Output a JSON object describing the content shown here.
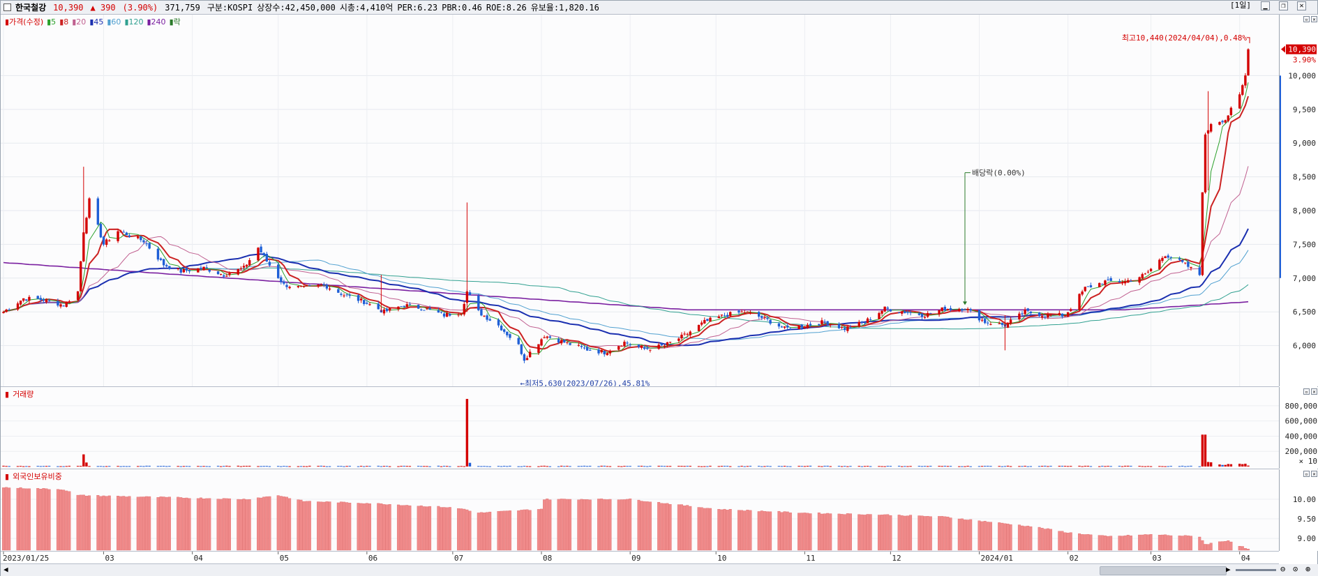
{
  "header": {
    "name": "한국철강",
    "price": "10,390",
    "change": "▲ 390",
    "change_pct": "(3.90%)",
    "volume": "371,759",
    "market": "구분:KOSPI",
    "shares": "상장수:42,450,000",
    "mktcap": "시총:4,410억",
    "per": "PER:6.23",
    "pbr": "PBR:0.46",
    "roe": "ROE:8.26",
    "reserve": "유보율:1,820.16",
    "period_label": "[1일]"
  },
  "colors": {
    "up": "#d40000",
    "down": "#1f5fd6",
    "ma5": "#2aa02a",
    "ma8": "#cc2222",
    "ma20": "#c06090",
    "ma45": "#1a2fb0",
    "ma60": "#50a0d0",
    "ma120": "#30a090",
    "ma240": "#7a1fa0",
    "ex_div": "#2a7a2a",
    "volume": "#d40000",
    "foreign": "#f08a8a"
  },
  "legend_price": [
    {
      "label": "가격(수정)",
      "color": "#d40000"
    },
    {
      "label": "5",
      "color": "#2aa02a"
    },
    {
      "label": "8",
      "color": "#cc2222"
    },
    {
      "label": "20",
      "color": "#c06090"
    },
    {
      "label": "45",
      "color": "#1a2fb0"
    },
    {
      "label": "60",
      "color": "#50a0d0"
    },
    {
      "label": "120",
      "color": "#30a090"
    },
    {
      "label": "240",
      "color": "#7a1fa0"
    },
    {
      "label": "락",
      "color": "#2a7a2a"
    }
  ],
  "legend_volume": "거래량",
  "legend_foreign": "외국인보유비중",
  "chart_data": [
    {
      "type": "candlestick",
      "title": "",
      "x": [
        "2023/01/25",
        "03",
        "04",
        "05",
        "06",
        "07",
        "08",
        "09",
        "10",
        "11",
        "12",
        "2024/01",
        "02",
        "03",
        "04"
      ],
      "ylim": [
        5500,
        10800
      ],
      "yticks": [
        "10,000",
        "9,500",
        "9,000",
        "8,500",
        "8,000",
        "7,500",
        "7,000",
        "6,500",
        "6,000"
      ],
      "last_price_label": "10,390",
      "last_pct_label": "3.90%",
      "annotations": [
        {
          "text": "최고10,440(2024/04/04),0.48%",
          "x": "2024/04/04",
          "y": 10440
        },
        {
          "text": "←최저5,630(2023/07/26),45.81%",
          "x": "2023/07/26",
          "y": 5630
        },
        {
          "text": "배당락(0.00%)",
          "x": "2023/12/27",
          "y": 6550
        }
      ],
      "close_path": [
        [
          "2023/01/25",
          6500
        ],
        [
          "2023/02/01",
          6700
        ],
        [
          "2023/02/08",
          6680
        ],
        [
          "2023/02/15",
          6600
        ],
        [
          "2023/02/20",
          6800
        ],
        [
          "2023/02/22",
          7700
        ],
        [
          "2023/02/24",
          8150
        ],
        [
          "2023/03/01",
          7500
        ],
        [
          "2023/03/06",
          7700
        ],
        [
          "2023/03/15",
          7550
        ],
        [
          "2023/03/22",
          7200
        ],
        [
          "2023/03/28",
          7100
        ],
        [
          "2023/04/05",
          7150
        ],
        [
          "2023/04/12",
          7050
        ],
        [
          "2023/04/19",
          7150
        ],
        [
          "2023/04/24",
          7450
        ],
        [
          "2023/04/27",
          7250
        ],
        [
          "2023/05/03",
          6900
        ],
        [
          "2023/05/10",
          6850
        ],
        [
          "2023/05/17",
          6900
        ],
        [
          "2023/05/24",
          6750
        ],
        [
          "2023/05/31",
          6650
        ],
        [
          "2023/06/07",
          6500
        ],
        [
          "2023/06/14",
          6600
        ],
        [
          "2023/06/21",
          6550
        ],
        [
          "2023/06/28",
          6450
        ],
        [
          "2023/07/04",
          6500
        ],
        [
          "2023/07/06",
          6800
        ],
        [
          "2023/07/10",
          6500
        ],
        [
          "2023/07/17",
          6300
        ],
        [
          "2023/07/24",
          6000
        ],
        [
          "2023/07/26",
          5800
        ],
        [
          "2023/08/02",
          6150
        ],
        [
          "2023/08/09",
          6050
        ],
        [
          "2023/08/16",
          5950
        ],
        [
          "2023/08/23",
          5900
        ],
        [
          "2023/08/30",
          6050
        ],
        [
          "2023/09/06",
          5950
        ],
        [
          "2023/09/13",
          6000
        ],
        [
          "2023/09/20",
          6150
        ],
        [
          "2023/09/27",
          6350
        ],
        [
          "2023/10/04",
          6450
        ],
        [
          "2023/10/11",
          6500
        ],
        [
          "2023/10/18",
          6400
        ],
        [
          "2023/10/25",
          6250
        ],
        [
          "2023/11/01",
          6300
        ],
        [
          "2023/11/08",
          6350
        ],
        [
          "2023/11/15",
          6250
        ],
        [
          "2023/11/22",
          6350
        ],
        [
          "2023/11/29",
          6550
        ],
        [
          "2023/12/06",
          6500
        ],
        [
          "2023/12/13",
          6450
        ],
        [
          "2023/12/20",
          6550
        ],
        [
          "2023/12/27",
          6550
        ],
        [
          "2024/01/03",
          6350
        ],
        [
          "2024/01/10",
          6300
        ],
        [
          "2024/01/17",
          6500
        ],
        [
          "2024/01/24",
          6450
        ],
        [
          "2024/01/31",
          6450
        ],
        [
          "2024/02/07",
          6850
        ],
        [
          "2024/02/14",
          6950
        ],
        [
          "2024/02/21",
          6950
        ],
        [
          "2024/02/28",
          7050
        ],
        [
          "2024/03/06",
          7350
        ],
        [
          "2024/03/13",
          7200
        ],
        [
          "2024/03/18",
          7050
        ],
        [
          "2024/03/19",
          8300
        ],
        [
          "2024/03/20",
          9100
        ],
        [
          "2024/03/22",
          9300
        ],
        [
          "2024/03/27",
          9350
        ],
        [
          "2024/04/01",
          9700
        ],
        [
          "2024/04/03",
          10000
        ],
        [
          "2024/04/04",
          10390
        ]
      ]
    },
    {
      "type": "bar",
      "title": "거래량",
      "ylim": [
        0,
        900000
      ],
      "yticks": [
        "800,000",
        "600,000",
        "400,000",
        "200,000"
      ],
      "unit_label": "× 10",
      "spikes": [
        {
          "x": "2023/02/22",
          "value": 160000
        },
        {
          "x": "2023/07/06",
          "value": 890000
        },
        {
          "x": "2024/03/19",
          "value": 420000
        },
        {
          "x": "2024/03/20",
          "value": 420000
        }
      ]
    },
    {
      "type": "bar",
      "title": "외국인보유비중",
      "ylim": [
        8.7,
        10.55
      ],
      "yticks": [
        "10.00",
        "9.50",
        "9.00"
      ],
      "series": [
        {
          "values_path": [
            [
              "2023/01/25",
              10.3
            ],
            [
              "2023/02/15",
              10.25
            ],
            [
              "2023/02/20",
              10.1
            ],
            [
              "2023/04/20",
              10.0
            ],
            [
              "2023/05/01",
              10.1
            ],
            [
              "2023/05/10",
              9.95
            ],
            [
              "2023/06/01",
              9.9
            ],
            [
              "2023/06/28",
              9.8
            ],
            [
              "2023/07/05",
              9.75
            ],
            [
              "2023/07/10",
              9.65
            ],
            [
              "2023/08/01",
              9.75
            ],
            [
              "2023/08/02",
              10.0
            ],
            [
              "2023/09/01",
              10.0
            ],
            [
              "2023/10/01",
              9.75
            ],
            [
              "2023/11/01",
              9.65
            ],
            [
              "2023/12/01",
              9.6
            ],
            [
              "2023/12/20",
              9.55
            ],
            [
              "2024/01/01",
              9.45
            ],
            [
              "2024/01/20",
              9.3
            ],
            [
              "2024/02/01",
              9.15
            ],
            [
              "2024/02/15",
              9.05
            ],
            [
              "2024/03/01",
              9.1
            ],
            [
              "2024/03/18",
              9.05
            ],
            [
              "2024/03/20",
              8.85
            ],
            [
              "2024/03/28",
              8.95
            ],
            [
              "2024/04/03",
              8.75
            ],
            [
              "2024/04/04",
              8.72
            ]
          ]
        }
      ]
    }
  ]
}
